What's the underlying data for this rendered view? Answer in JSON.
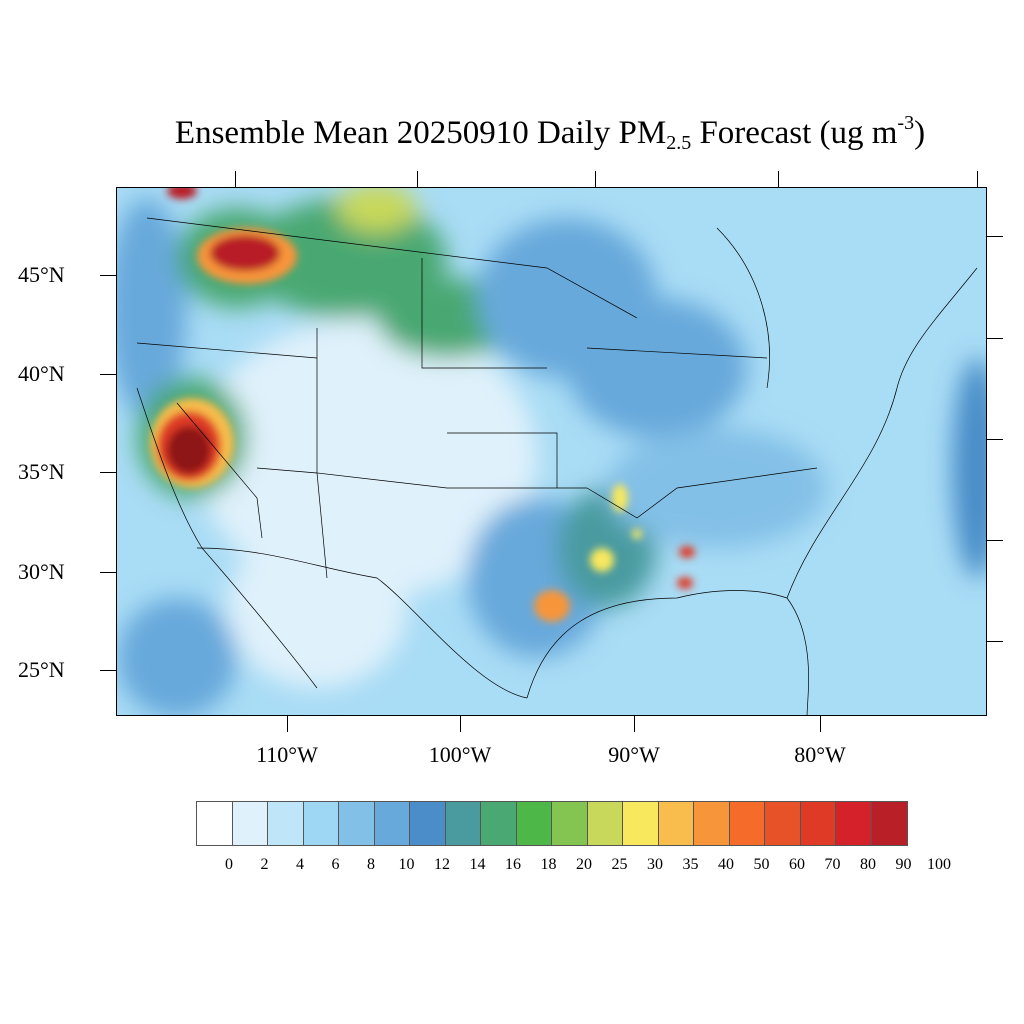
{
  "title": {
    "prefix": "Ensemble Mean 20250910 Daily PM",
    "sub": "2.5",
    "mid": " Forecast (ug m",
    "sup": "-3",
    "suffix": ")"
  },
  "lat_labels": [
    "45°N",
    "40°N",
    "35°N",
    "30°N",
    "25°N"
  ],
  "lon_labels": [
    "110°W",
    "100°W",
    "90°W",
    "80°W"
  ],
  "colorbar": {
    "labels": [
      "0",
      "2",
      "4",
      "6",
      "8",
      "10",
      "12",
      "14",
      "16",
      "18",
      "20",
      "25",
      "30",
      "35",
      "40",
      "50",
      "60",
      "70",
      "80",
      "90",
      "100"
    ],
    "colors": [
      "#ffffff",
      "#dff1fb",
      "#bfe5f8",
      "#9dd7f4",
      "#83c0e7",
      "#67a9db",
      "#4a8dc8",
      "#4a9ba0",
      "#4aa872",
      "#4db848",
      "#84c450",
      "#c8d85a",
      "#f8e85e",
      "#f8bd4c",
      "#f7953b",
      "#f46b2a",
      "#e85228",
      "#df3a26",
      "#d52129",
      "#b81f26",
      "#8e1719"
    ]
  }
}
